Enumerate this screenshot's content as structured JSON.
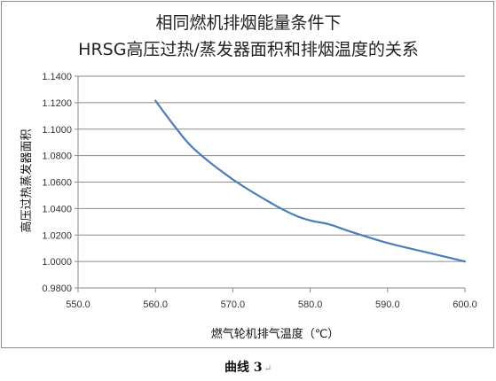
{
  "chart_data": {
    "type": "line",
    "title_lines": [
      "相同燃机排烟能量条件下",
      "HRSG高压过热/蒸发器面积和排烟温度的关系"
    ],
    "xlabel": "燃气轮机排气温度（℃）",
    "ylabel": "高压过热蒸发器面积",
    "xlim": [
      550.0,
      600.0
    ],
    "ylim": [
      0.98,
      1.14
    ],
    "x_ticks": [
      "550.0",
      "560.0",
      "570.0",
      "580.0",
      "590.0",
      "600.0"
    ],
    "y_ticks": [
      "0.9800",
      "1.0000",
      "1.0200",
      "1.0400",
      "1.0600",
      "1.0800",
      "1.1000",
      "1.1200",
      "1.1400"
    ],
    "grid": "horizontal",
    "legend": "none",
    "series": [
      {
        "color": "#4a7ebb",
        "points": [
          [
            560.0,
            1.1215
          ],
          [
            562.5,
            1.102
          ],
          [
            565.0,
            1.085
          ],
          [
            570.0,
            1.062
          ],
          [
            575.0,
            1.044
          ],
          [
            578.0,
            1.035
          ],
          [
            580.0,
            1.031
          ],
          [
            582.5,
            1.028
          ],
          [
            585.0,
            1.023
          ],
          [
            590.0,
            1.014
          ],
          [
            595.0,
            1.007
          ],
          [
            600.0,
            1.0
          ]
        ]
      }
    ]
  },
  "caption": {
    "text": "曲线 3",
    "mark": "↵"
  }
}
